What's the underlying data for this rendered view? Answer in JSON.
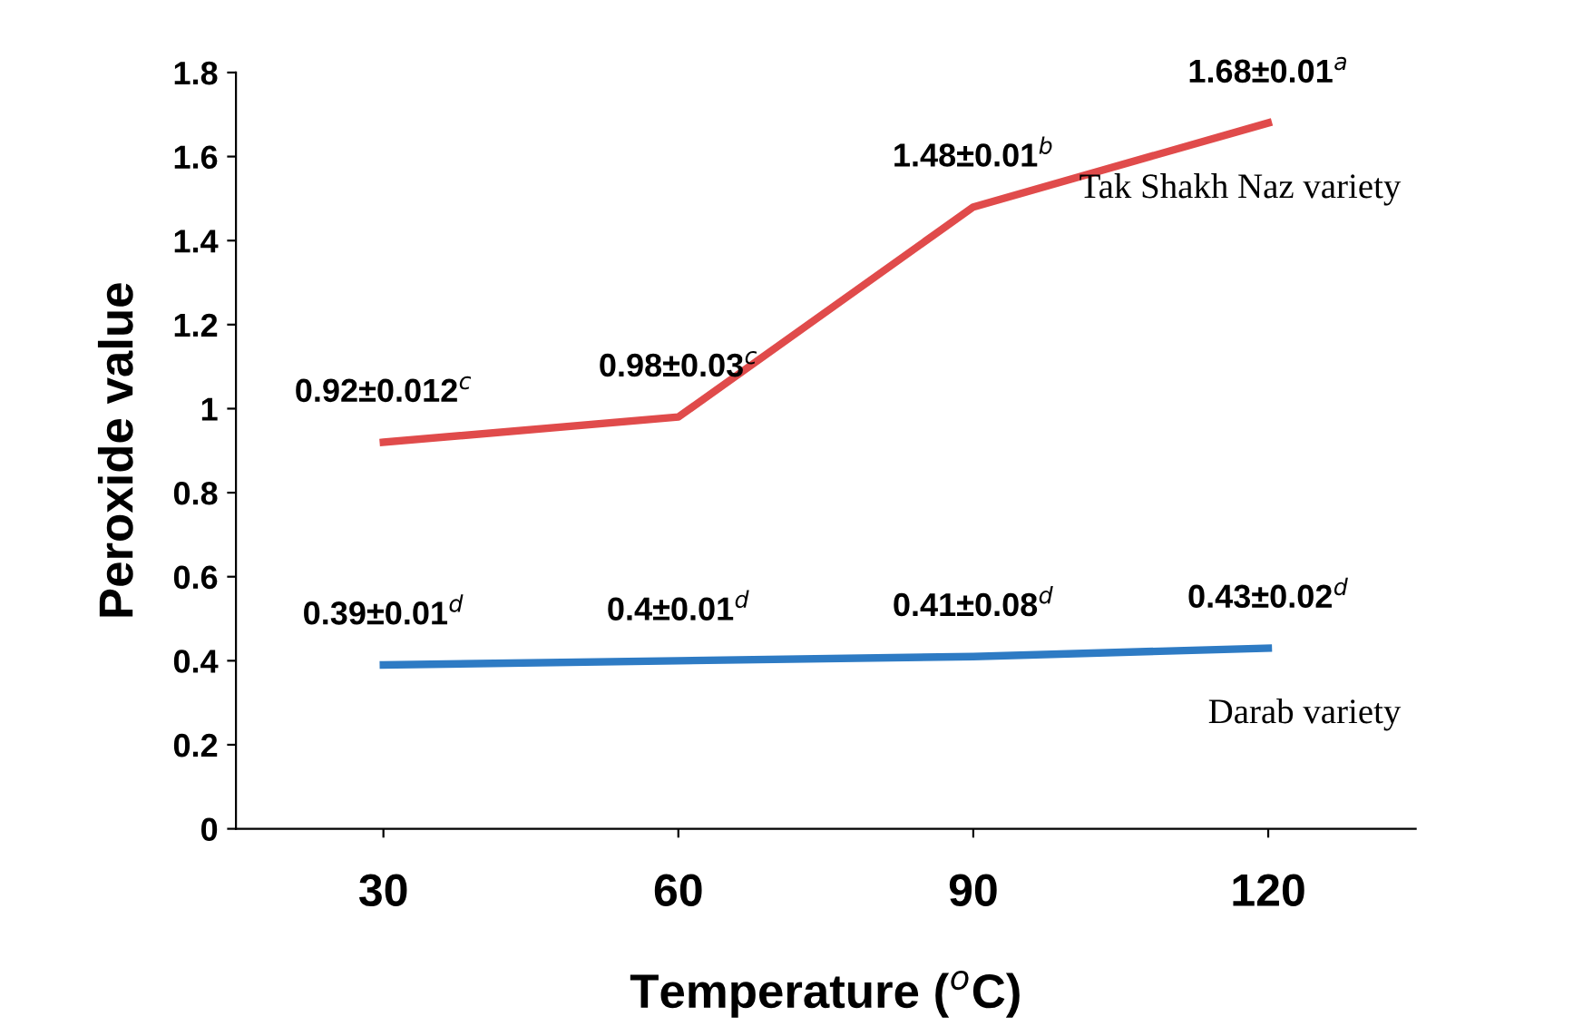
{
  "chart_data": {
    "type": "line",
    "xlabel": "Temperature ($^{o}$C)",
    "ylabel": "Peroxide value",
    "categories": [
      "30",
      "60",
      "90",
      "120"
    ],
    "series": [
      {
        "name": "Tak Shakh Naz variety",
        "color": "#e04b4b",
        "values": [
          0.92,
          0.98,
          1.48,
          1.68
        ],
        "value_labels": [
          "0.92±0.012$^{c}$",
          "0.98±0.03$^{c}$",
          "1.48±0.01$^{b}$",
          "1.68±0.01$^{a}$"
        ]
      },
      {
        "name": "Darab variety",
        "color": "#2e7bc4",
        "values": [
          0.39,
          0.4,
          0.41,
          0.43
        ],
        "value_labels": [
          "0.39±0.01$^{d}$",
          "0.4±0.01$^{d}$",
          "0.41±0.08$^{d}$",
          "0.43±0.02$^{d}$"
        ]
      }
    ],
    "ylim": [
      0,
      1.8
    ],
    "yticks": [
      0,
      0.2,
      0.4,
      0.6,
      0.8,
      1,
      1.2,
      1.4,
      1.6,
      1.8
    ],
    "grid": false,
    "legend": false,
    "marker": "none",
    "line_style": "solid"
  }
}
